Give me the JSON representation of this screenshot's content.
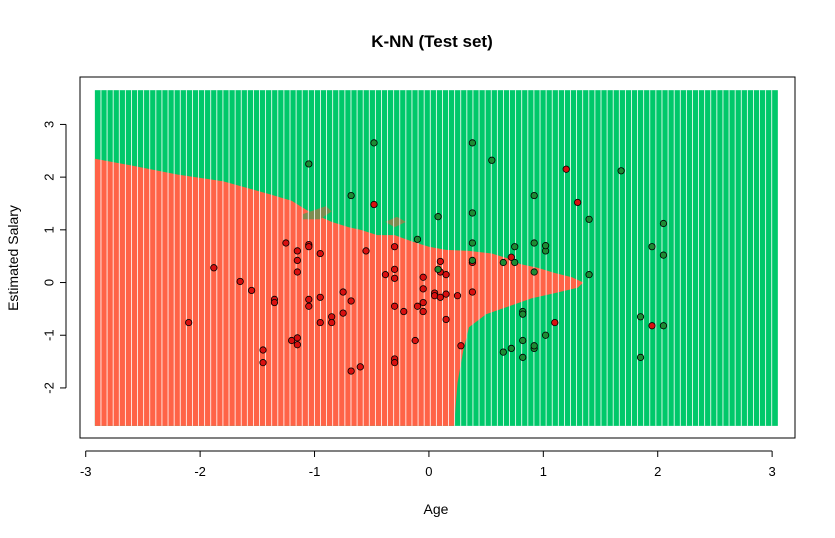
{
  "chart_data": {
    "type": "scatter",
    "title": "K-NN (Test set)",
    "xlabel": "Age",
    "ylabel": "Estimated Salary",
    "xlim": [
      -3.05,
      3.2
    ],
    "ylim": [
      -2.95,
      3.9
    ],
    "x_ticks": [
      -3,
      -2,
      -1,
      0,
      1,
      2,
      3
    ],
    "y_ticks": [
      -2,
      -1,
      0,
      1,
      2,
      3
    ],
    "grid": false,
    "region_x_range": [
      -2.92,
      3.05
    ],
    "region_y_range": [
      -2.72,
      3.65
    ],
    "colors": {
      "region_class_0": "#FF6347",
      "region_class_1": "#00C86A",
      "region_overlap": "#7F8C50",
      "point_class_0": "#D81010",
      "point_class_1": "#1E8B34",
      "grid_line": "#FFFFFF"
    },
    "boundary_class0": [
      [
        -2.92,
        2.35
      ],
      [
        -2.6,
        2.22
      ],
      [
        -2.2,
        2.05
      ],
      [
        -1.8,
        1.92
      ],
      [
        -1.4,
        1.68
      ],
      [
        -1.2,
        1.55
      ],
      [
        -1.05,
        1.35
      ],
      [
        -0.85,
        1.15
      ],
      [
        -0.7,
        1.05
      ],
      [
        -0.6,
        1.0
      ],
      [
        -0.45,
        0.9
      ],
      [
        -0.3,
        0.9
      ],
      [
        -0.15,
        0.78
      ],
      [
        0.0,
        0.68
      ],
      [
        0.15,
        0.62
      ],
      [
        0.35,
        0.6
      ],
      [
        0.55,
        0.55
      ],
      [
        0.7,
        0.45
      ],
      [
        0.8,
        0.35
      ],
      [
        0.95,
        0.28
      ],
      [
        1.1,
        0.18
      ],
      [
        1.25,
        0.1
      ],
      [
        1.35,
        0.0
      ],
      [
        1.3,
        -0.1
      ],
      [
        1.1,
        -0.2
      ],
      [
        0.9,
        -0.3
      ],
      [
        0.7,
        -0.45
      ],
      [
        0.5,
        -0.6
      ],
      [
        0.35,
        -0.85
      ],
      [
        0.3,
        -1.3
      ],
      [
        0.25,
        -1.9
      ],
      [
        0.22,
        -2.72
      ],
      [
        -2.92,
        -2.72
      ]
    ],
    "overlap_regions": [
      [
        [
          -1.1,
          1.3
        ],
        [
          -0.9,
          1.45
        ],
        [
          -0.85,
          1.35
        ],
        [
          -0.95,
          1.2
        ],
        [
          -1.1,
          1.2
        ]
      ],
      [
        [
          -0.38,
          1.15
        ],
        [
          -0.28,
          1.25
        ],
        [
          -0.2,
          1.15
        ],
        [
          -0.3,
          1.05
        ]
      ]
    ],
    "series": [
      {
        "class": 0,
        "points": [
          [
            -1.88,
            0.28
          ],
          [
            -1.65,
            0.02
          ],
          [
            -1.55,
            -0.15
          ],
          [
            -1.35,
            -0.32
          ],
          [
            -1.35,
            -0.38
          ],
          [
            -1.45,
            -1.28
          ],
          [
            -1.45,
            -1.52
          ],
          [
            -2.1,
            -0.76
          ],
          [
            -1.25,
            0.75
          ],
          [
            -1.2,
            -1.1
          ],
          [
            -1.15,
            -1.05
          ],
          [
            -1.15,
            -1.18
          ],
          [
            -1.15,
            0.6
          ],
          [
            -1.15,
            0.42
          ],
          [
            -1.15,
            0.2
          ],
          [
            -1.05,
            0.72
          ],
          [
            -1.05,
            0.68
          ],
          [
            -1.05,
            -0.32
          ],
          [
            -1.05,
            -0.45
          ],
          [
            -0.95,
            -0.28
          ],
          [
            -0.95,
            -0.76
          ],
          [
            -0.95,
            0.55
          ],
          [
            -0.85,
            -0.65
          ],
          [
            -0.85,
            -0.76
          ],
          [
            -0.75,
            -0.18
          ],
          [
            -0.75,
            -0.58
          ],
          [
            -0.68,
            -0.35
          ],
          [
            -0.68,
            -1.68
          ],
          [
            -0.6,
            -1.6
          ],
          [
            -0.55,
            0.6
          ],
          [
            -0.48,
            1.48
          ],
          [
            -0.38,
            0.15
          ],
          [
            -0.3,
            0.25
          ],
          [
            -0.3,
            0.08
          ],
          [
            -0.3,
            0.68
          ],
          [
            -0.3,
            -1.45
          ],
          [
            -0.3,
            -1.52
          ],
          [
            -0.3,
            -0.45
          ],
          [
            -0.22,
            -0.55
          ],
          [
            -0.12,
            -1.1
          ],
          [
            -0.1,
            -0.45
          ],
          [
            -0.05,
            -0.55
          ],
          [
            -0.05,
            -0.38
          ],
          [
            -0.05,
            -0.12
          ],
          [
            -0.05,
            0.1
          ],
          [
            0.05,
            -0.2
          ],
          [
            0.05,
            -0.25
          ],
          [
            0.1,
            -0.28
          ],
          [
            0.1,
            0.2
          ],
          [
            0.1,
            0.4
          ],
          [
            0.15,
            -0.7
          ],
          [
            0.15,
            -0.22
          ],
          [
            0.15,
            0.15
          ],
          [
            0.25,
            -0.25
          ],
          [
            0.28,
            -1.2
          ],
          [
            0.38,
            -0.18
          ],
          [
            0.38,
            0.38
          ],
          [
            0.72,
            0.48
          ],
          [
            1.1,
            -0.76
          ],
          [
            1.2,
            2.15
          ],
          [
            1.3,
            1.52
          ],
          [
            1.95,
            -0.82
          ]
        ]
      },
      {
        "class": 1,
        "points": [
          [
            -1.05,
            2.25
          ],
          [
            -0.68,
            1.65
          ],
          [
            -0.48,
            2.65
          ],
          [
            -0.1,
            0.82
          ],
          [
            0.08,
            0.25
          ],
          [
            0.08,
            1.25
          ],
          [
            0.38,
            2.65
          ],
          [
            0.38,
            1.32
          ],
          [
            0.38,
            0.75
          ],
          [
            0.38,
            0.42
          ],
          [
            0.55,
            2.32
          ],
          [
            0.65,
            0.38
          ],
          [
            0.75,
            0.68
          ],
          [
            0.75,
            0.38
          ],
          [
            0.82,
            -0.55
          ],
          [
            0.82,
            -0.6
          ],
          [
            0.82,
            -1.1
          ],
          [
            0.92,
            0.2
          ],
          [
            0.92,
            0.75
          ],
          [
            0.92,
            1.65
          ],
          [
            0.72,
            -1.25
          ],
          [
            0.65,
            -1.32
          ],
          [
            0.82,
            -1.42
          ],
          [
            0.92,
            -1.25
          ],
          [
            0.92,
            -1.2
          ],
          [
            1.02,
            -1.0
          ],
          [
            1.02,
            0.6
          ],
          [
            1.02,
            0.7
          ],
          [
            1.4,
            0.15
          ],
          [
            1.4,
            1.2
          ],
          [
            1.68,
            2.12
          ],
          [
            1.85,
            -0.65
          ],
          [
            1.85,
            -1.42
          ],
          [
            1.95,
            0.68
          ],
          [
            2.05,
            0.52
          ],
          [
            2.05,
            -0.82
          ],
          [
            2.05,
            1.12
          ]
        ]
      }
    ]
  }
}
